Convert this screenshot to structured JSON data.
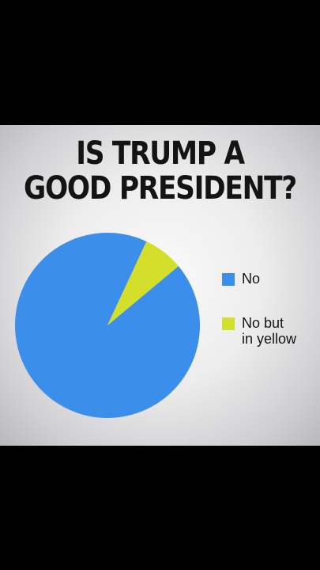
{
  "title_lines": [
    "IS TRUMP A",
    "GOOD PRESIDENT?"
  ],
  "colors": {
    "no": "#3b8eea",
    "no_but_yellow": "#d4df2b",
    "background": "#000000"
  },
  "chart_data": {
    "type": "pie",
    "title": "IS TRUMP A GOOD PRESIDENT?",
    "labels": [
      "No",
      "No but in yellow"
    ],
    "values": [
      93,
      7
    ],
    "legend": {
      "position": "right",
      "entries": [
        {
          "label": "No",
          "label_lines": [
            "No"
          ],
          "color": "#3b8eea"
        },
        {
          "label": "No but in yellow",
          "label_lines": [
            "No but",
            "in yellow"
          ],
          "color": "#d4df2b"
        }
      ]
    }
  }
}
